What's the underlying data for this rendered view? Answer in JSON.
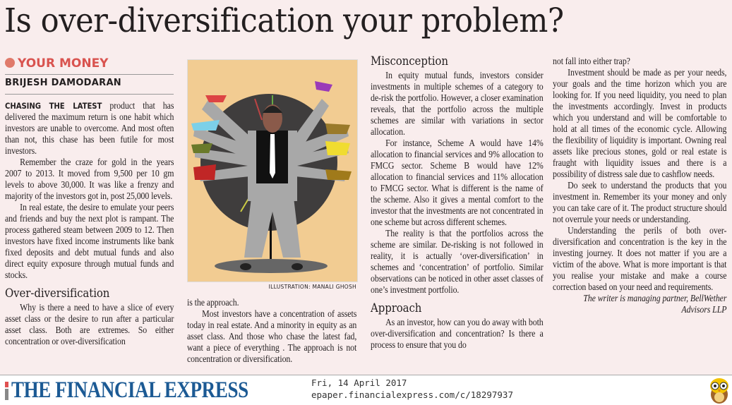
{
  "headline": "Is over-diversification your problem?",
  "section_label": "YOUR MONEY",
  "author": "BRIJESH DAMODARAN",
  "illustration_credit": "ILLUSTRATION: MANALI GHOSH",
  "column1": {
    "lead_in": "CHASING THE LATEST",
    "p1": " product that has delivered the maximum return is one habit which investors are unable to overcome. And most often than not, this chase has been futile for most investors.",
    "p2": "Remember the craze for gold in the years 2007 to 2013. It moved from 9,500 per 10 gm levels to above 30,000. It was like a frenzy and majority of the investors got in, post 25,000 levels.",
    "p3": "In real estate, the desire to emulate your peers and friends and buy the next plot is rampant. The process gathered steam between 2009 to 12. Then investors have fixed income instruments like bank fixed deposits and debt mutual funds and also direct equity exposure through mutual funds and stocks.",
    "heading": "Over-diversification",
    "p4": "Why is there a need to have a slice of every asset class or the desire to run after a particular asset class. Both are extremes. So either concentration or over-diversification"
  },
  "column2": {
    "p1": "is the approach.",
    "p2": "Most investors have a concentration of assets today in real estate. And a minority in equity as an asset class. And those who chase the latest fad, want a piece of everything . The approach is not concentration or diversification."
  },
  "column3": {
    "heading1": "Misconception",
    "p1": "In equity mutual funds, investors consider investments in multiple schemes of a category to de-risk the portfolio. However, a closer examination reveals, that the portfolio across the multiple schemes are similar with variations in sector allocation.",
    "p2": "For instance, Scheme A would have 14% allocation to financial services and 9% allocation to FMCG sector. Scheme B would have 12% allocation to financial services and 11% allocation to FMCG sector. What is different is the name of the scheme. Also it gives a mental comfort to the investor that the investments are not concentrated in one scheme but across different schemes.",
    "p3": "The reality is that the portfolios across the scheme are similar. De-risking is not followed in reality, it is actually ‘over-diversification’ in schemes and ‘concentration’ of portfolio. Similar observations can be noticed in other asset classes of one’s investment portfolio.",
    "heading2": "Approach",
    "p4": "As an investor, how can you do away with both over-diversification and concentration? Is there a process to ensure that you do"
  },
  "column4": {
    "p1": "not fall into either trap?",
    "p2": "Investment should be made as per your needs, your goals and the time horizon which you are looking for. If you need liquidity, you need to plan the investments accordingly. Invest in products which you understand and will be comfortable to hold at all times of the economic cycle. Allowing the flexibility of liquidity is important. Owning real assets like precious stones, gold or real estate is fraught with liquidity issues and there is a possibility of distress sale due to cashflow needs.",
    "p3": "Do seek to understand the products that you investment in. Remember its your money and only you can take care of it. The product structure should not overrule your needs or understanding.",
    "p4": "Understanding the perils of both over-diversification and concentration is the key in the investing journey. It does not matter if you are a victim of the above. What is more important is that you realise your mistake and make a course correction based on your need and requirements.",
    "signoff": "The writer is managing partner, BellWether Advisors LLP"
  },
  "footer": {
    "publication": "THE FINANCIAL EXPRESS",
    "date": "Fri, 14 April 2017",
    "url": "epaper.financialexpress.com/c/18297937"
  },
  "colors": {
    "section_accent": "#d9534f",
    "brand_blue": "#1c5a94",
    "illustration_bg": "#f2cc92",
    "page_bg": "#f9eded"
  }
}
